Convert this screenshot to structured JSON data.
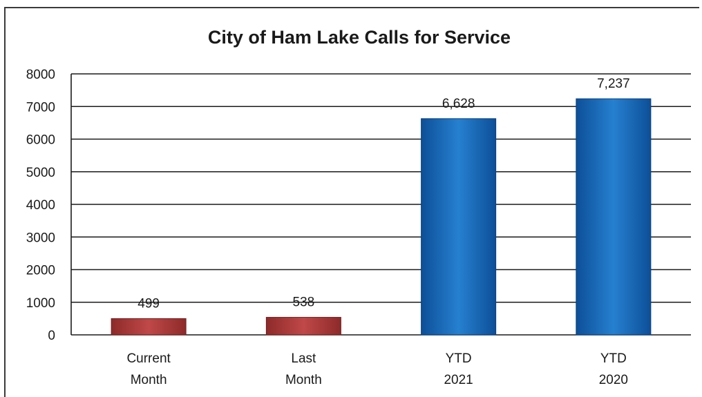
{
  "chart_data": {
    "type": "bar",
    "title": "City of Ham Lake Calls for Service",
    "categories": [
      [
        "Current",
        "Month"
      ],
      [
        "Last",
        "Month"
      ],
      [
        "YTD",
        "2021"
      ],
      [
        "YTD",
        "2020"
      ]
    ],
    "values": [
      499,
      538,
      6628,
      7237
    ],
    "value_labels": [
      "499",
      "538",
      "6,628",
      "7,237"
    ],
    "bar_colors": [
      "#b03a3a",
      "#b03a3a",
      "#1c6fbe",
      "#1c6fbe"
    ],
    "ylim": [
      0,
      8000
    ],
    "yticks": [
      0,
      1000,
      2000,
      3000,
      4000,
      5000,
      6000,
      7000,
      8000
    ],
    "xlabel": "",
    "ylabel": "",
    "grid": true,
    "legend": "none"
  }
}
